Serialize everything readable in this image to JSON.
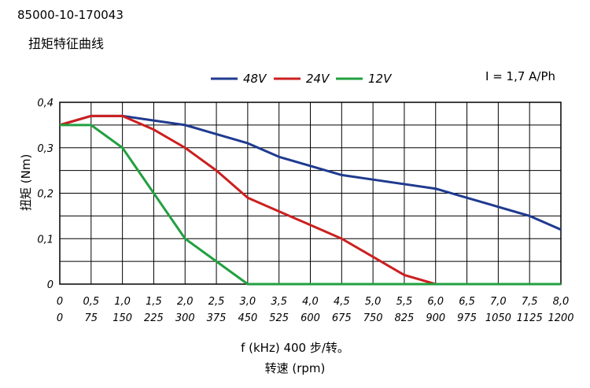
{
  "header": {
    "model": "85000-10-170043",
    "title": "扭矩特征曲线"
  },
  "annotation": "I = 1,7 A/Ph",
  "chart_data": {
    "type": "line",
    "ylabel": "扭矩 (Nm)",
    "xlabel_lines": [
      "f (kHz) 400 步/转。",
      "转速 (rpm)"
    ],
    "x": [
      0,
      0.5,
      1.0,
      1.5,
      2.0,
      2.5,
      3.0,
      3.5,
      4.0,
      4.5,
      5.0,
      5.5,
      6.0,
      6.5,
      7.0,
      7.5,
      8.0
    ],
    "x_tick_labels_khz": [
      "0",
      "0,5",
      "1,0",
      "1,5",
      "2,0",
      "2,5",
      "3,0",
      "3,5",
      "4,0",
      "4,5",
      "5,0",
      "5,5",
      "6,0",
      "6,5",
      "7,0",
      "7,5",
      "8,0"
    ],
    "x_tick_labels_rpm": [
      "0",
      "75",
      "150",
      "225",
      "300",
      "375",
      "450",
      "525",
      "600",
      "675",
      "750",
      "825",
      "900",
      "975",
      "1050",
      "1125",
      "1200"
    ],
    "y_ticks": [
      0,
      0.1,
      0.2,
      0.3,
      0.4
    ],
    "y_tick_labels": [
      "0",
      "0,1",
      "0,2",
      "0,3",
      "0,4"
    ],
    "xlim": [
      0,
      8.0
    ],
    "ylim": [
      0,
      0.4
    ],
    "grid": true,
    "legend_position": "top",
    "series": [
      {
        "name": "48V",
        "color": "#1f3a8f",
        "values": [
          0.35,
          0.37,
          0.37,
          0.36,
          0.35,
          0.33,
          0.31,
          0.28,
          0.26,
          0.24,
          0.23,
          0.22,
          0.21,
          0.19,
          0.17,
          0.15,
          0.12
        ]
      },
      {
        "name": "24V",
        "color": "#cc1f1f",
        "values": [
          0.35,
          0.37,
          0.37,
          0.34,
          0.3,
          0.25,
          0.19,
          0.16,
          0.13,
          0.1,
          0.06,
          0.02,
          0.0,
          0.0,
          0.0,
          0.0,
          0.0
        ]
      },
      {
        "name": "12V",
        "color": "#22a040",
        "values": [
          0.35,
          0.35,
          0.3,
          0.2,
          0.1,
          0.05,
          0.0,
          0.0,
          0.0,
          0.0,
          0.0,
          0.0,
          0.0,
          0.0,
          0.0,
          0.0,
          0.0
        ]
      }
    ]
  }
}
